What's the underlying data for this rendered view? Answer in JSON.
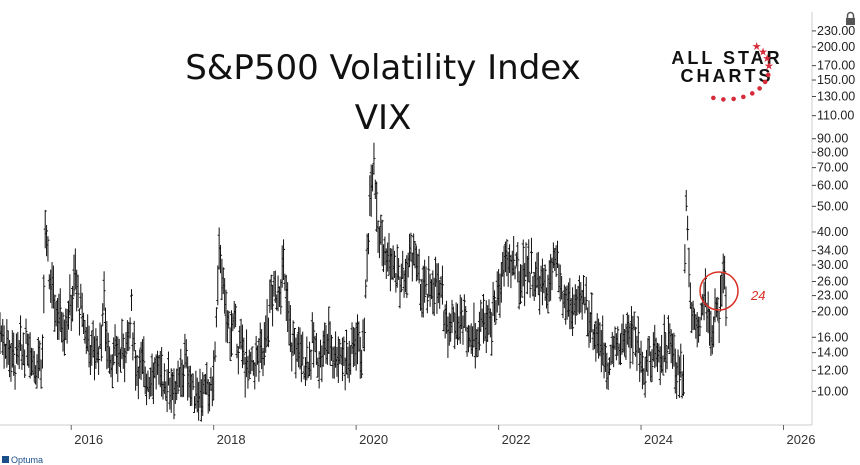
{
  "chart_data": {
    "type": "line",
    "title": "S&P500 Volatility Index",
    "subtitle": "VIX",
    "y_scale": "log",
    "ylim": [
      8.5,
      240
    ],
    "xlim": [
      2015.0,
      2026.4
    ],
    "y_ticks": [
      "230.00",
      "200.00",
      "170.00",
      "150.00",
      "130.00",
      "110.00",
      "90.00",
      "80.00",
      "70.00",
      "60.00",
      "50.00",
      "40.00",
      "34.00",
      "30.00",
      "26.00",
      "23.00",
      "20.00",
      "16.00",
      "14.00",
      "12.00",
      "10.00"
    ],
    "y_tick_values": [
      230,
      200,
      170,
      150,
      130,
      110,
      90,
      80,
      70,
      60,
      50,
      40,
      34,
      30,
      26,
      23,
      20,
      16,
      14,
      12,
      10
    ],
    "x_ticks": [
      "2016",
      "2018",
      "2020",
      "2022",
      "2024",
      "2026"
    ],
    "x_tick_values": [
      2016,
      2018,
      2020,
      2022,
      2024,
      2026
    ],
    "grid": false,
    "series": [
      {
        "x": [
          2015.0,
          2015.1,
          2015.2,
          2015.3,
          2015.4,
          2015.5,
          2015.6,
          2015.63,
          2015.7,
          2015.8,
          2015.9,
          2016.0,
          2016.05,
          2016.1,
          2016.2,
          2016.3,
          2016.4,
          2016.46,
          2016.5,
          2016.6,
          2016.7,
          2016.8,
          2016.85,
          2016.9,
          2017.0,
          2017.1,
          2017.2,
          2017.3,
          2017.4,
          2017.5,
          2017.6,
          2017.7,
          2017.8,
          2017.9,
          2018.0,
          2018.09,
          2018.15,
          2018.2,
          2018.3,
          2018.4,
          2018.5,
          2018.6,
          2018.7,
          2018.8,
          2018.9,
          2018.98,
          2019.05,
          2019.1,
          2019.2,
          2019.3,
          2019.4,
          2019.5,
          2019.6,
          2019.7,
          2019.8,
          2019.9,
          2020.0,
          2020.1,
          2020.2,
          2020.25,
          2020.3,
          2020.4,
          2020.5,
          2020.6,
          2020.7,
          2020.8,
          2020.9,
          2021.0,
          2021.1,
          2021.2,
          2021.3,
          2021.4,
          2021.5,
          2021.6,
          2021.7,
          2021.8,
          2021.9,
          2022.0,
          2022.1,
          2022.2,
          2022.3,
          2022.4,
          2022.5,
          2022.6,
          2022.7,
          2022.8,
          2022.9,
          2023.0,
          2023.1,
          2023.2,
          2023.3,
          2023.4,
          2023.5,
          2023.6,
          2023.7,
          2023.8,
          2023.9,
          2024.0,
          2024.1,
          2024.2,
          2024.3,
          2024.4,
          2024.5,
          2024.6,
          2024.63,
          2024.7,
          2024.8,
          2024.9,
          2025.0,
          2025.05,
          2025.1,
          2025.15,
          2025.2
        ],
        "y": [
          17,
          15,
          13,
          14,
          15,
          13,
          14,
          40,
          25,
          20,
          18,
          21,
          27,
          22,
          17,
          14,
          15,
          22,
          15,
          13,
          14,
          16,
          20,
          13,
          12,
          11.5,
          12,
          11,
          11,
          10,
          13,
          10,
          10,
          9.8,
          11,
          37,
          20,
          18,
          17,
          14,
          12,
          13,
          14,
          22,
          24,
          28,
          18,
          15,
          14,
          13,
          15,
          13,
          16,
          14,
          14,
          13,
          16,
          14,
          60,
          80,
          45,
          32,
          30,
          26,
          27,
          35,
          24,
          23,
          26,
          22,
          18,
          19,
          18,
          17,
          16,
          20,
          18,
          24,
          30,
          31,
          26,
          30,
          27,
          25,
          24,
          31,
          22,
          21,
          20,
          23,
          18,
          16,
          13,
          14,
          15,
          16,
          17,
          13,
          13,
          14,
          14,
          15,
          12,
          12,
          65,
          20,
          18,
          22,
          16,
          20,
          18,
          26,
          24
        ]
      }
    ],
    "annotation": "24"
  },
  "logo": {
    "line1": "ALL STAR",
    "line2": "CHARTS"
  },
  "footer": "Optuma"
}
